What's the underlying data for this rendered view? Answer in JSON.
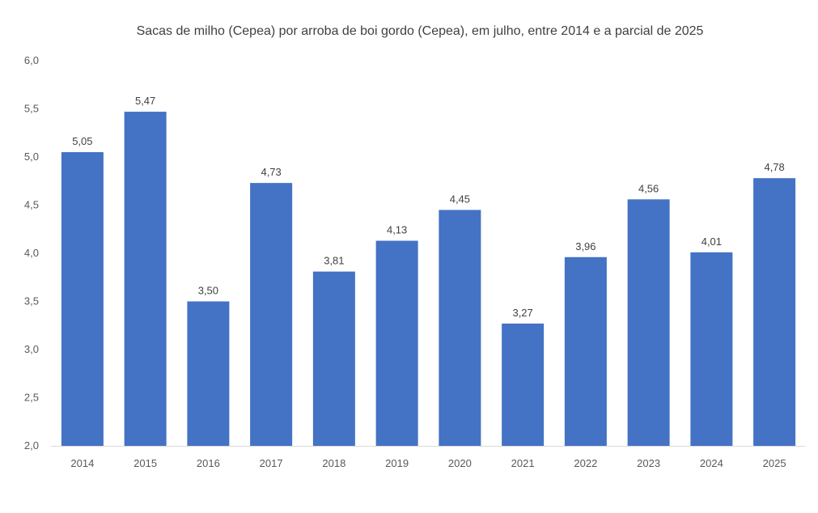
{
  "chart_data": {
    "type": "bar",
    "title": "Sacas de milho (Cepea) por arroba de boi gordo (Cepea), em julho, entre 2014 e a parcial de 2025",
    "xlabel": "",
    "ylabel": "",
    "categories": [
      "2014",
      "2015",
      "2016",
      "2017",
      "2018",
      "2019",
      "2020",
      "2021",
      "2022",
      "2023",
      "2024",
      "2025"
    ],
    "values": [
      5.05,
      5.47,
      3.5,
      4.73,
      3.81,
      4.13,
      4.45,
      3.27,
      3.96,
      4.56,
      4.01,
      4.78
    ],
    "data_labels": [
      "5,05",
      "5,47",
      "3,50",
      "4,73",
      "3,81",
      "4,13",
      "4,45",
      "3,27",
      "3,96",
      "4,56",
      "4,01",
      "4,78"
    ],
    "ylim": [
      2.0,
      6.0
    ],
    "yticks": [
      2.0,
      2.5,
      3.0,
      3.5,
      4.0,
      4.5,
      5.0,
      5.5,
      6.0
    ],
    "ytick_labels": [
      "2,0",
      "2,5",
      "3,0",
      "3,5",
      "4,0",
      "4,5",
      "5,0",
      "5,5",
      "6,0"
    ],
    "grid": false,
    "legend": "none",
    "bar_color": "#4472C4"
  }
}
